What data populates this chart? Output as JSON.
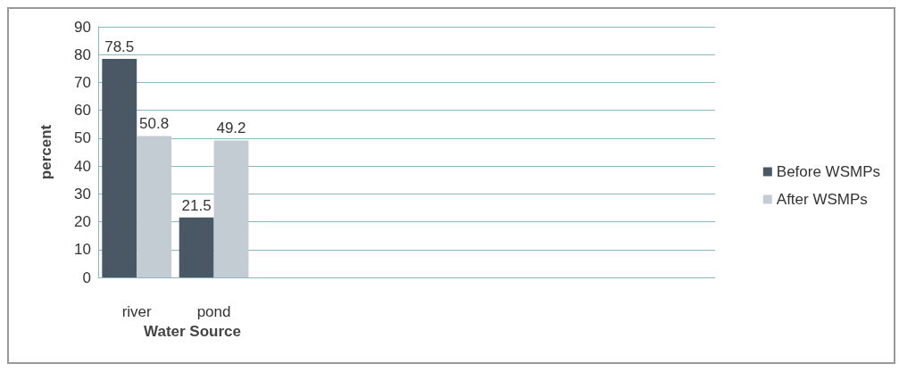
{
  "chart_data": {
    "type": "bar",
    "xlabel": "Water Source",
    "ylabel": "percent",
    "categories": [
      "river",
      "pond",
      null,
      null,
      null,
      null,
      null,
      null
    ],
    "series": [
      {
        "name": "Before WSMPs",
        "color": "#4a5866",
        "values": [
          78.5,
          21.5,
          null,
          null,
          null,
          null,
          null,
          null
        ]
      },
      {
        "name": "After WSMPs",
        "color": "#c3ccd3",
        "values": [
          50.8,
          49.2,
          null,
          null,
          null,
          null,
          null,
          null
        ]
      }
    ],
    "ylim": [
      0,
      90
    ],
    "yticks": [
      0,
      10,
      20,
      30,
      40,
      50,
      60,
      70,
      80,
      90
    ],
    "grid": "y",
    "legend": "right",
    "data_labels": true
  }
}
